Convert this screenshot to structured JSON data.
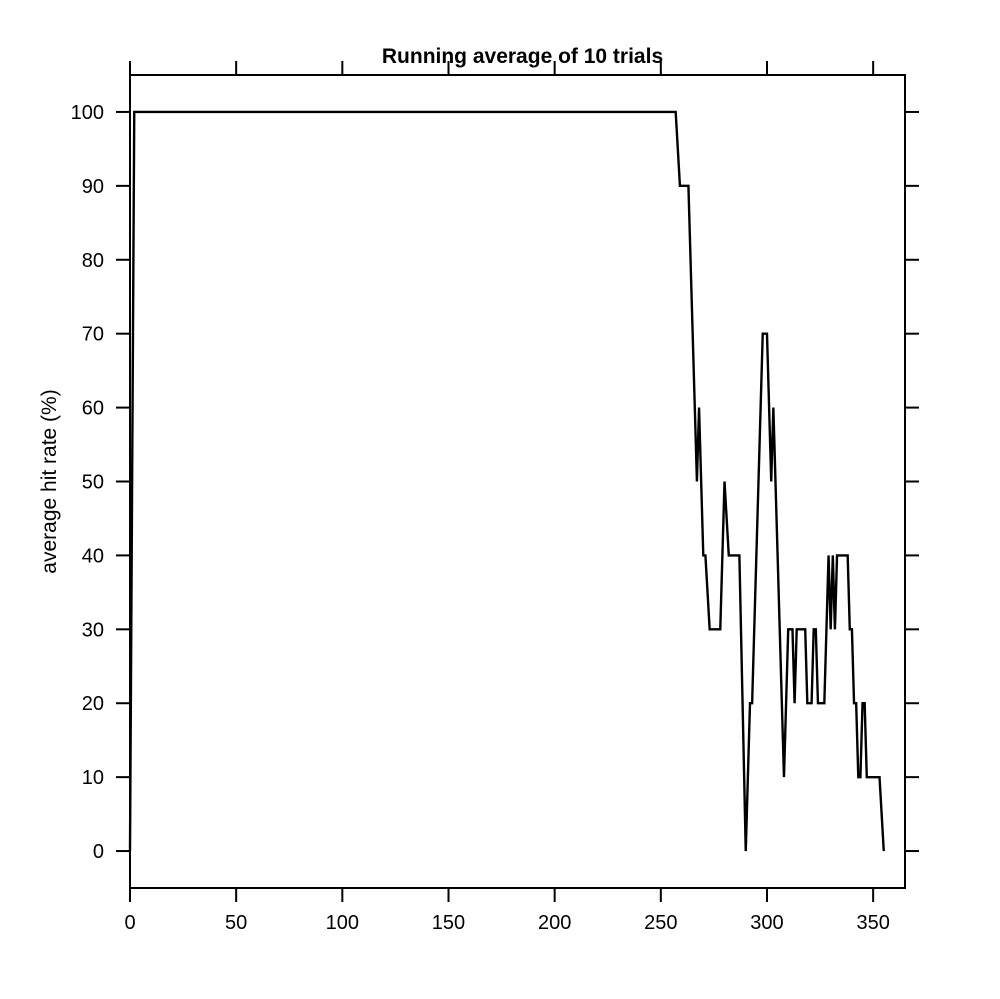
{
  "chart_data": {
    "type": "line",
    "title": "Running average of 10 trials",
    "xlabel": "",
    "ylabel": "average hit rate (%)",
    "xlim": [
      0,
      365
    ],
    "ylim": [
      -5,
      105
    ],
    "x_ticks": [
      0,
      50,
      100,
      150,
      200,
      250,
      300,
      350
    ],
    "y_ticks": [
      0,
      10,
      20,
      30,
      40,
      50,
      60,
      70,
      80,
      90,
      100
    ],
    "tick_label_sides": [
      "bottom",
      "left"
    ],
    "tick_mark_sides": [
      "bottom",
      "left",
      "top",
      "right"
    ],
    "grid": false,
    "line_color": "#000000",
    "series": [
      {
        "x": [
          0,
          2,
          257,
          259,
          263,
          266,
          267,
          268,
          270,
          271,
          273,
          278,
          280,
          282,
          287,
          290,
          292,
          293,
          298,
          300,
          302,
          303,
          308,
          310,
          312,
          313,
          314,
          318,
          319,
          321,
          322,
          323,
          324,
          327,
          328,
          329,
          330,
          331,
          332,
          333,
          338,
          339,
          340,
          341,
          342,
          343,
          344,
          345,
          346,
          347,
          348,
          353,
          355
        ],
        "y": [
          0,
          100,
          100,
          90,
          90,
          60,
          50,
          60,
          40,
          40,
          30,
          30,
          50,
          40,
          40,
          0,
          20,
          20,
          70,
          70,
          50,
          60,
          10,
          30,
          30,
          20,
          30,
          30,
          20,
          20,
          30,
          30,
          20,
          20,
          30,
          40,
          30,
          40,
          30,
          40,
          40,
          30,
          30,
          20,
          20,
          10,
          10,
          20,
          20,
          10,
          10,
          10,
          0
        ]
      }
    ]
  }
}
